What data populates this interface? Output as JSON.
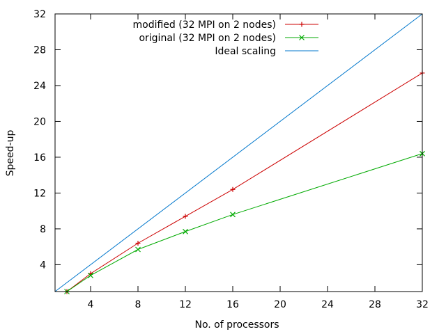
{
  "chart_data": {
    "type": "line",
    "title": "",
    "xlabel": "No. of processors",
    "ylabel": "Speed-up",
    "xlim": [
      1,
      32
    ],
    "ylim": [
      1,
      32
    ],
    "x_ticks": [
      4,
      8,
      12,
      16,
      20,
      24,
      28,
      32
    ],
    "y_ticks": [
      4,
      8,
      12,
      16,
      20,
      24,
      28,
      32
    ],
    "grid": false,
    "legend_position": "top-right",
    "series": [
      {
        "name": "modified (32 MPI on 2 nodes)",
        "color": "#cc0000",
        "marker": "plus",
        "x": [
          1,
          2,
          4,
          8,
          12,
          16,
          32
        ],
        "y": [
          1,
          1.0,
          3.0,
          6.4,
          9.4,
          12.4,
          25.4
        ]
      },
      {
        "name": "original (32 MPI on 2 nodes)",
        "color": "#00aa00",
        "marker": "cross",
        "x": [
          1,
          2,
          4,
          8,
          12,
          16,
          32
        ],
        "y": [
          1,
          1.0,
          2.8,
          5.7,
          7.7,
          9.6,
          16.4
        ]
      },
      {
        "name": "Ideal scaling",
        "color": "#0077cc",
        "marker": "none",
        "x": [
          1,
          32
        ],
        "y": [
          1,
          32
        ]
      }
    ]
  }
}
